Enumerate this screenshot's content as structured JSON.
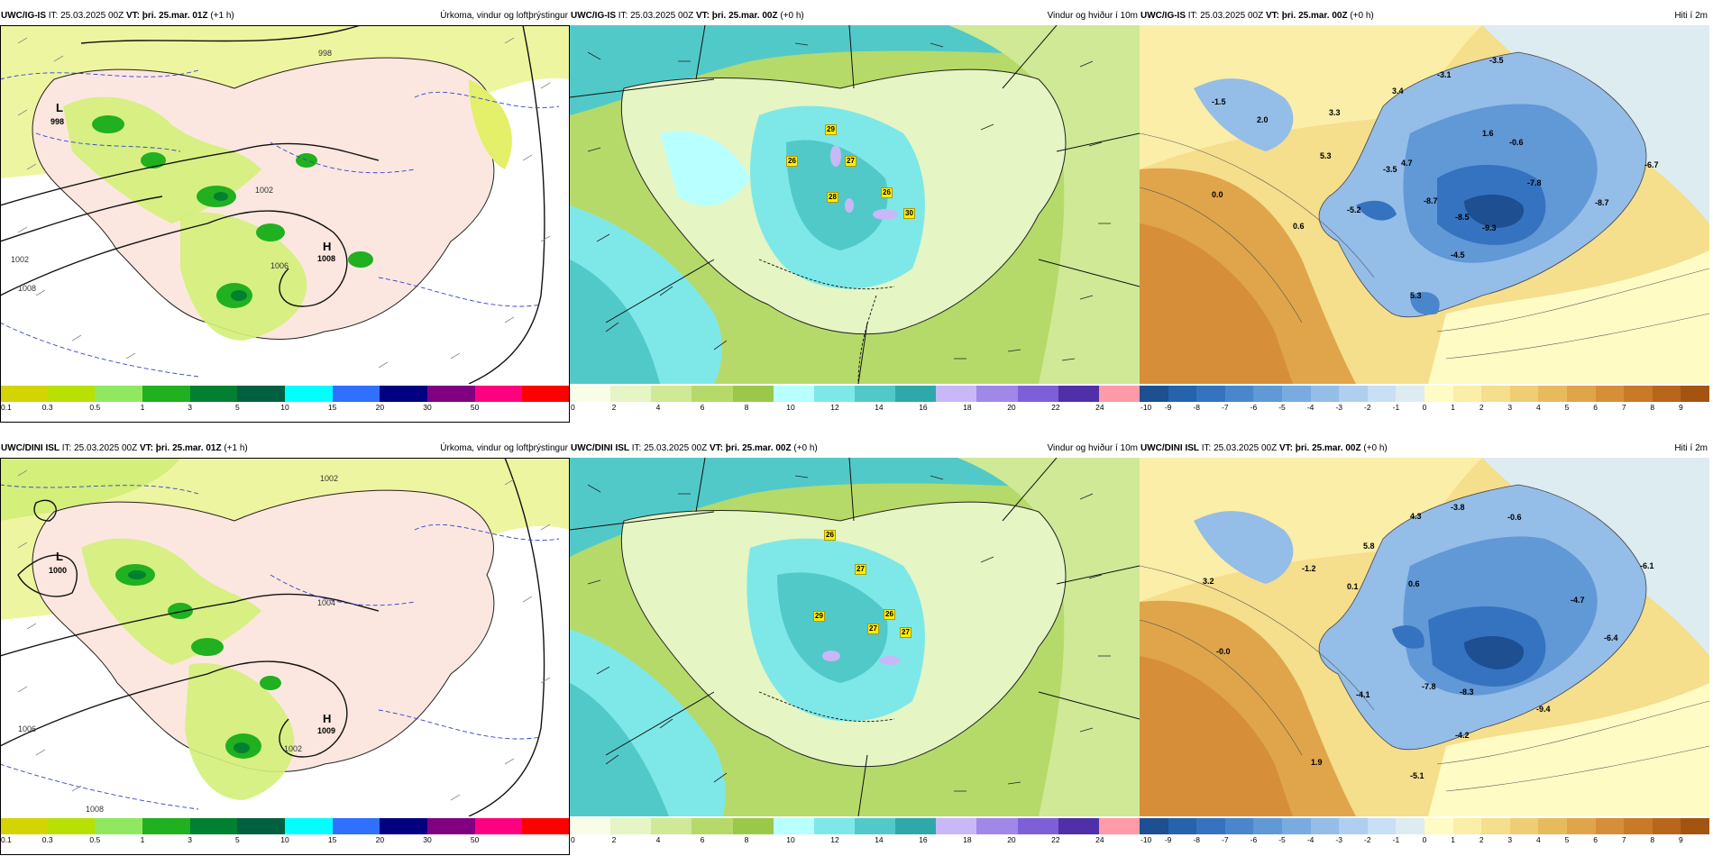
{
  "panels": [
    {
      "model": "UWC/IG-IS",
      "it": "IT: 25.03.2025 00Z",
      "vt": "VT: þri. 25.mar. 01Z",
      "lead": "(+1 h)",
      "title": "Úrkoma, vindur og loftþrýstingur",
      "kind": "precip",
      "colorbar": {
        "colors": [
          "#d4d400",
          "#b8e000",
          "#90e860",
          "#20b020",
          "#008030",
          "#006040",
          "#00ffff",
          "#3070ff",
          "#000080",
          "#800080",
          "#ff0080",
          "#ff0000"
        ],
        "labels": [
          "0.1",
          "0.3",
          "0.5",
          "1",
          "3",
          "5",
          "10",
          "15",
          "20",
          "30",
          "50"
        ]
      },
      "pressure_labels": [
        "998",
        "1002",
        "1006",
        "1008",
        "1002"
      ],
      "high_label": "H",
      "high_value": "1008",
      "low_label": "L",
      "low_value": "998"
    },
    {
      "model": "UWC/IG-IS",
      "it": "IT: 25.03.2025 00Z",
      "vt": "VT: þri. 25.mar. 00Z",
      "lead": "(+0 h)",
      "title": "Vindur og hviður í 10m",
      "kind": "wind",
      "colorbar": {
        "colors": [
          "#f8fde8",
          "#e6f5c4",
          "#cfe996",
          "#b5da6a",
          "#9cc84a",
          "#b8ffff",
          "#7ee8e8",
          "#52c9c9",
          "#2ea8a8",
          "#c8b8f8",
          "#9f88e8",
          "#7d60d8",
          "#5030a8",
          "#ff9aa8"
        ],
        "labels": [
          "0",
          "2",
          "4",
          "6",
          "8",
          "10",
          "12",
          "14",
          "16",
          "18",
          "20",
          "22",
          "24"
        ]
      },
      "gusts": [
        "29",
        "26",
        "27",
        "28",
        "26",
        "30"
      ]
    },
    {
      "model": "UWC/IG-IS",
      "it": "IT: 25.03.2025 00Z",
      "vt": "VT: þri. 25.mar. 00Z",
      "lead": "(+0 h)",
      "title": "Hiti í 2m",
      "kind": "temp",
      "colorbar": {
        "colors": [
          "#1d4f91",
          "#2563ad",
          "#3573c0",
          "#4a86cc",
          "#6198d6",
          "#7aabe0",
          "#94bde8",
          "#aecfef",
          "#c8dff5",
          "#dcecf0",
          "#fffbc4",
          "#fbeea8",
          "#f5de8c",
          "#efcd74",
          "#e8ba5e",
          "#e0a54a",
          "#d68f38",
          "#c97a28",
          "#b8661c",
          "#a35410"
        ],
        "labels": [
          "-10",
          "-9",
          "-8",
          "-7",
          "-6",
          "-5",
          "-4",
          "-3",
          "-2",
          "-1",
          "0",
          "1",
          "2",
          "3",
          "4",
          "5",
          "6",
          "7",
          "8",
          "9"
        ]
      },
      "temps": [
        "-1.5",
        "2.0",
        "3.3",
        "3.4",
        "-3.1",
        "-3.5",
        "1.6",
        "-0.6",
        "5.3",
        "4.7",
        "-3.5",
        "-6.7",
        "0.0",
        "-5.2",
        "-8.7",
        "-7.8",
        "-8.5",
        "-9.3",
        "0.6",
        "-4.5",
        "-8.7",
        "5.3"
      ]
    },
    {
      "model": "UWC/DINI ISL",
      "it": "IT: 25.03.2025 00Z",
      "vt": "VT: þri. 25.mar. 01Z",
      "lead": "(+1 h)",
      "title": "Úrkoma, vindur og loftþrýstingur",
      "kind": "precip",
      "colorbar": {
        "colors": [
          "#d4d400",
          "#b8e000",
          "#90e860",
          "#20b020",
          "#008030",
          "#006040",
          "#00ffff",
          "#3070ff",
          "#000080",
          "#800080",
          "#ff0080",
          "#ff0000"
        ],
        "labels": [
          "0.1",
          "0.3",
          "0.5",
          "1",
          "3",
          "5",
          "10",
          "15",
          "20",
          "30",
          "50"
        ]
      },
      "pressure_labels": [
        "1002",
        "1004",
        "1002",
        "1006",
        "1008"
      ],
      "high_label": "H",
      "high_value": "1009",
      "low_label": "L",
      "low_value": "1000"
    },
    {
      "model": "UWC/DINI ISL",
      "it": "IT: 25.03.2025 00Z",
      "vt": "VT: þri. 25.mar. 00Z",
      "lead": "(+0 h)",
      "title": "Vindur og hviður í 10m",
      "kind": "wind",
      "colorbar": {
        "colors": [
          "#f8fde8",
          "#e6f5c4",
          "#cfe996",
          "#b5da6a",
          "#9cc84a",
          "#b8ffff",
          "#7ee8e8",
          "#52c9c9",
          "#2ea8a8",
          "#c8b8f8",
          "#9f88e8",
          "#7d60d8",
          "#5030a8",
          "#ff9aa8"
        ],
        "labels": [
          "0",
          "2",
          "4",
          "6",
          "8",
          "10",
          "12",
          "14",
          "16",
          "18",
          "20",
          "22",
          "24"
        ]
      },
      "gusts": [
        "26",
        "27",
        "29",
        "26",
        "27",
        "27"
      ]
    },
    {
      "model": "UWC/DINI ISL",
      "it": "IT: 25.03.2025 00Z",
      "vt": "VT: þri. 25.mar. 00Z",
      "lead": "(+0 h)",
      "title": "Hiti í 2m",
      "kind": "temp",
      "colorbar": {
        "colors": [
          "#1d4f91",
          "#2563ad",
          "#3573c0",
          "#4a86cc",
          "#6198d6",
          "#7aabe0",
          "#94bde8",
          "#aecfef",
          "#c8dff5",
          "#dcecf0",
          "#fffbc4",
          "#fbeea8",
          "#f5de8c",
          "#efcd74",
          "#e8ba5e",
          "#e0a54a",
          "#d68f38",
          "#c97a28",
          "#b8661c",
          "#a35410"
        ],
        "labels": [
          "-10",
          "-9",
          "-8",
          "-7",
          "-6",
          "-5",
          "-4",
          "-3",
          "-2",
          "-1",
          "0",
          "1",
          "2",
          "3",
          "4",
          "5",
          "6",
          "7",
          "8",
          "9"
        ]
      },
      "temps": [
        "-3.8",
        "-0.6",
        "5.8",
        "4.3",
        "-1.2",
        "3.2",
        "0.1",
        "0.6",
        "-6.1",
        "-4.7",
        "-6.4",
        "-0.0",
        "-4.1",
        "-7.8",
        "-8.3",
        "-9.4",
        "-4.2",
        "1.9",
        "-5.1"
      ]
    }
  ]
}
